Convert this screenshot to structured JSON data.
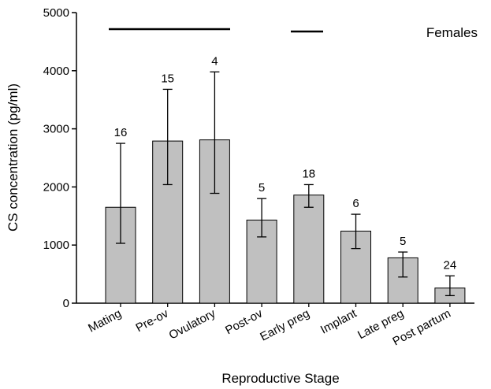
{
  "chart_data": {
    "type": "bar",
    "y_label": "CS concentration (pg/ml)",
    "x_label": "Reproductive Stage",
    "annotation": "Females",
    "categories": [
      "Mating",
      "Pre-ov",
      "Ovulatory",
      "Post-ov",
      "Early preg",
      "Implant",
      "Late preg",
      "Post partum"
    ],
    "values": [
      1650,
      2790,
      2810,
      1430,
      1860,
      1240,
      780,
      260
    ],
    "error_low": [
      1030,
      2040,
      1890,
      1140,
      1650,
      940,
      450,
      130
    ],
    "error_high": [
      2750,
      3680,
      3980,
      1800,
      2040,
      1530,
      880,
      470
    ],
    "sample_sizes": [
      16,
      15,
      4,
      5,
      18,
      6,
      5,
      24
    ],
    "color": "#c0c0c0",
    "ylim": [
      0,
      5000
    ],
    "yticks": [
      0,
      1000,
      2000,
      3000,
      4000,
      5000
    ]
  }
}
